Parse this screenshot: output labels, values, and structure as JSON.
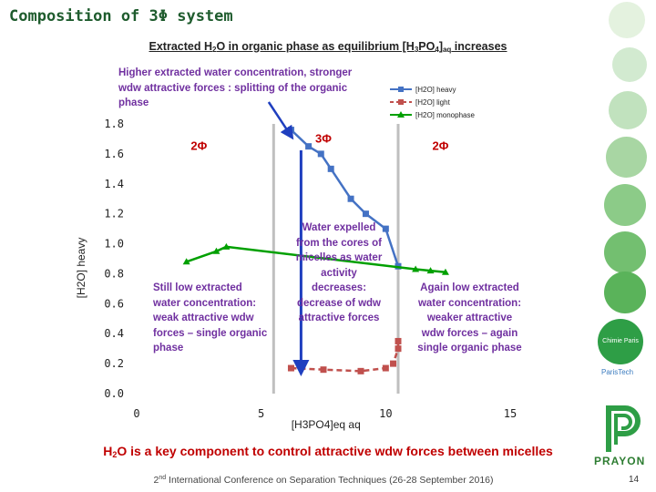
{
  "slide": {
    "title": "Composition of 3Φ system",
    "heading_pre": "Extracted H",
    "heading_sub1": "2",
    "heading_mid": "O in organic phase as equilibrium [H",
    "heading_sub2": "3",
    "heading_mid2": "PO",
    "heading_sub3": "4",
    "heading_mid3": "]",
    "heading_sub4": "aq",
    "heading_post": " increases",
    "footer_pre": "H",
    "footer_sub": "2",
    "footer_post": "O is a key component to control attractive wdw forces between micelles",
    "conference_pre": "2",
    "conference_sup": "nd",
    "conference_post": " International Conference on Separation Techniques (26-28 September 2016)",
    "page_number": "14",
    "logo_prayon": "PRAYON",
    "logo_paristech": "ParisTech",
    "logo_chimie": "Chimie Paris"
  },
  "annotations": {
    "top": "Higher extracted water concentration, stronger wdw attractive forces : splitting of the organic phase",
    "left": "Still low  extracted water concentration: weak attractive wdw forces – single organic phase",
    "middle": "Water expelled from the cores of micelles as water activity decreases: decrease of wdw attractive forces",
    "right": "Again low extracted water concentration: weaker attractive wdw forces – again single organic phase"
  },
  "colors": {
    "heavy": "#4472c4",
    "light": "#c0504d",
    "monophase": "#00a000",
    "title": "#1f5c2e",
    "annotation": "#7030a0",
    "footer": "#c00000",
    "arrow": "#1f3fbf",
    "boundary": "#bfbfbf"
  },
  "chart_data": {
    "type": "line",
    "xlabel": "[H3PO4]eq aq",
    "ylabel": "[H2O] heavy",
    "xlim": [
      0,
      15
    ],
    "ylim": [
      0,
      1.8
    ],
    "x_ticks": [
      0,
      5,
      10,
      15
    ],
    "y_ticks": [
      0.0,
      0.2,
      0.4,
      0.6,
      0.8,
      1.0,
      1.2,
      1.4,
      1.6,
      1.8
    ],
    "grid": false,
    "legend_position": "top-right",
    "phase_boundaries": [
      5.5,
      10.5
    ],
    "region_labels": [
      {
        "text": "2Φ",
        "x": 2.5,
        "y": 1.65
      },
      {
        "text": "3Φ",
        "x": 7.5,
        "y": 1.7
      },
      {
        "text": "2Φ",
        "x": 12.2,
        "y": 1.65
      }
    ],
    "series": [
      {
        "name": "[H2O] heavy",
        "marker": "square",
        "style": "solid",
        "x": [
          6.2,
          6.9,
          7.4,
          7.8,
          8.6,
          9.2,
          10.0,
          10.5
        ],
        "y": [
          1.76,
          1.65,
          1.6,
          1.5,
          1.3,
          1.2,
          1.1,
          0.85
        ]
      },
      {
        "name": "[H2O] light",
        "marker": "square",
        "style": "dashed",
        "x": [
          6.2,
          7.5,
          9.0,
          10.0,
          10.3,
          10.5,
          10.5
        ],
        "y": [
          0.17,
          0.16,
          0.15,
          0.17,
          0.2,
          0.3,
          0.35
        ]
      },
      {
        "name": "[H2O] monophase",
        "marker": "triangle",
        "style": "solid",
        "x": [
          2.0,
          3.2,
          3.6,
          11.2,
          11.8,
          12.4
        ],
        "y": [
          0.88,
          0.95,
          0.98,
          0.83,
          0.82,
          0.81
        ]
      }
    ]
  }
}
